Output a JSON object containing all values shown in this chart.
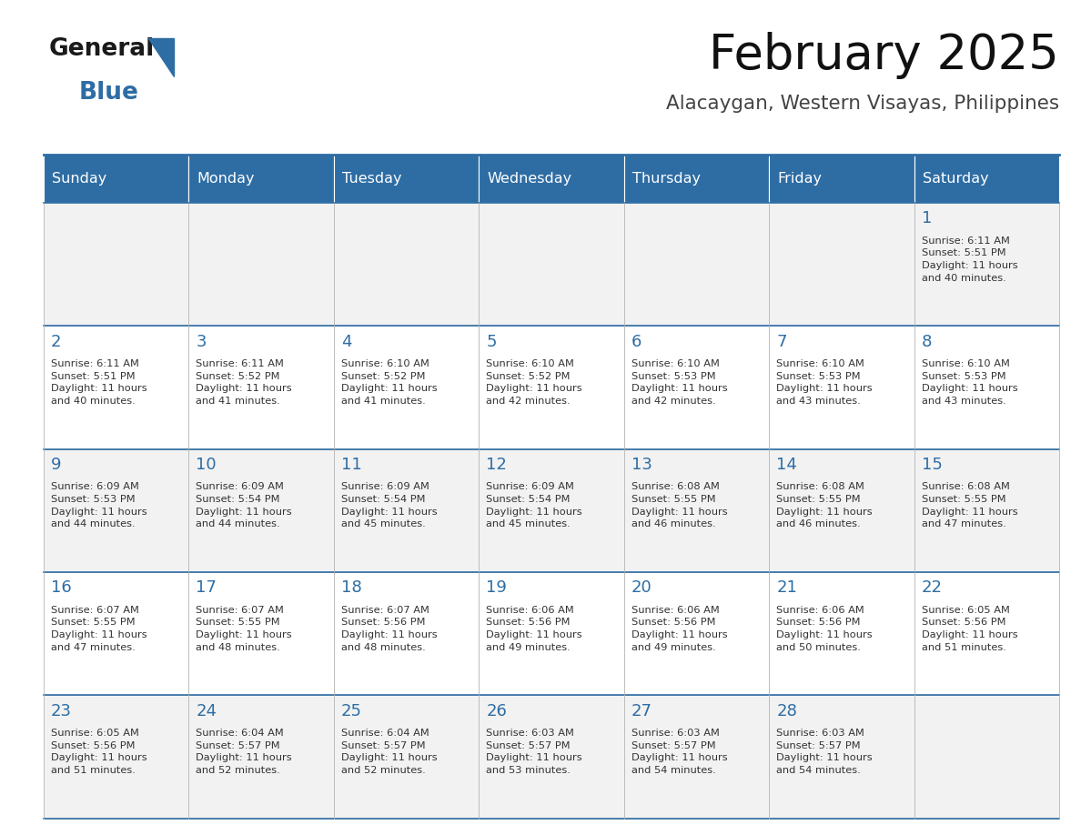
{
  "title": "February 2025",
  "subtitle": "Alacaygan, Western Visayas, Philippines",
  "header_bg_color": "#2E6DA4",
  "header_text_color": "#FFFFFF",
  "cell_bg_color": "#F2F2F2",
  "cell_bg_color_alt": "#FFFFFF",
  "day_number_color": "#2E6DA4",
  "cell_text_color": "#333333",
  "days_of_week": [
    "Sunday",
    "Monday",
    "Tuesday",
    "Wednesday",
    "Thursday",
    "Friday",
    "Saturday"
  ],
  "weeks": [
    [
      {
        "day": "",
        "info": ""
      },
      {
        "day": "",
        "info": ""
      },
      {
        "day": "",
        "info": ""
      },
      {
        "day": "",
        "info": ""
      },
      {
        "day": "",
        "info": ""
      },
      {
        "day": "",
        "info": ""
      },
      {
        "day": "1",
        "info": "Sunrise: 6:11 AM\nSunset: 5:51 PM\nDaylight: 11 hours\nand 40 minutes."
      }
    ],
    [
      {
        "day": "2",
        "info": "Sunrise: 6:11 AM\nSunset: 5:51 PM\nDaylight: 11 hours\nand 40 minutes."
      },
      {
        "day": "3",
        "info": "Sunrise: 6:11 AM\nSunset: 5:52 PM\nDaylight: 11 hours\nand 41 minutes."
      },
      {
        "day": "4",
        "info": "Sunrise: 6:10 AM\nSunset: 5:52 PM\nDaylight: 11 hours\nand 41 minutes."
      },
      {
        "day": "5",
        "info": "Sunrise: 6:10 AM\nSunset: 5:52 PM\nDaylight: 11 hours\nand 42 minutes."
      },
      {
        "day": "6",
        "info": "Sunrise: 6:10 AM\nSunset: 5:53 PM\nDaylight: 11 hours\nand 42 minutes."
      },
      {
        "day": "7",
        "info": "Sunrise: 6:10 AM\nSunset: 5:53 PM\nDaylight: 11 hours\nand 43 minutes."
      },
      {
        "day": "8",
        "info": "Sunrise: 6:10 AM\nSunset: 5:53 PM\nDaylight: 11 hours\nand 43 minutes."
      }
    ],
    [
      {
        "day": "9",
        "info": "Sunrise: 6:09 AM\nSunset: 5:53 PM\nDaylight: 11 hours\nand 44 minutes."
      },
      {
        "day": "10",
        "info": "Sunrise: 6:09 AM\nSunset: 5:54 PM\nDaylight: 11 hours\nand 44 minutes."
      },
      {
        "day": "11",
        "info": "Sunrise: 6:09 AM\nSunset: 5:54 PM\nDaylight: 11 hours\nand 45 minutes."
      },
      {
        "day": "12",
        "info": "Sunrise: 6:09 AM\nSunset: 5:54 PM\nDaylight: 11 hours\nand 45 minutes."
      },
      {
        "day": "13",
        "info": "Sunrise: 6:08 AM\nSunset: 5:55 PM\nDaylight: 11 hours\nand 46 minutes."
      },
      {
        "day": "14",
        "info": "Sunrise: 6:08 AM\nSunset: 5:55 PM\nDaylight: 11 hours\nand 46 minutes."
      },
      {
        "day": "15",
        "info": "Sunrise: 6:08 AM\nSunset: 5:55 PM\nDaylight: 11 hours\nand 47 minutes."
      }
    ],
    [
      {
        "day": "16",
        "info": "Sunrise: 6:07 AM\nSunset: 5:55 PM\nDaylight: 11 hours\nand 47 minutes."
      },
      {
        "day": "17",
        "info": "Sunrise: 6:07 AM\nSunset: 5:55 PM\nDaylight: 11 hours\nand 48 minutes."
      },
      {
        "day": "18",
        "info": "Sunrise: 6:07 AM\nSunset: 5:56 PM\nDaylight: 11 hours\nand 48 minutes."
      },
      {
        "day": "19",
        "info": "Sunrise: 6:06 AM\nSunset: 5:56 PM\nDaylight: 11 hours\nand 49 minutes."
      },
      {
        "day": "20",
        "info": "Sunrise: 6:06 AM\nSunset: 5:56 PM\nDaylight: 11 hours\nand 49 minutes."
      },
      {
        "day": "21",
        "info": "Sunrise: 6:06 AM\nSunset: 5:56 PM\nDaylight: 11 hours\nand 50 minutes."
      },
      {
        "day": "22",
        "info": "Sunrise: 6:05 AM\nSunset: 5:56 PM\nDaylight: 11 hours\nand 51 minutes."
      }
    ],
    [
      {
        "day": "23",
        "info": "Sunrise: 6:05 AM\nSunset: 5:56 PM\nDaylight: 11 hours\nand 51 minutes."
      },
      {
        "day": "24",
        "info": "Sunrise: 6:04 AM\nSunset: 5:57 PM\nDaylight: 11 hours\nand 52 minutes."
      },
      {
        "day": "25",
        "info": "Sunrise: 6:04 AM\nSunset: 5:57 PM\nDaylight: 11 hours\nand 52 minutes."
      },
      {
        "day": "26",
        "info": "Sunrise: 6:03 AM\nSunset: 5:57 PM\nDaylight: 11 hours\nand 53 minutes."
      },
      {
        "day": "27",
        "info": "Sunrise: 6:03 AM\nSunset: 5:57 PM\nDaylight: 11 hours\nand 54 minutes."
      },
      {
        "day": "28",
        "info": "Sunrise: 6:03 AM\nSunset: 5:57 PM\nDaylight: 11 hours\nand 54 minutes."
      },
      {
        "day": "",
        "info": ""
      }
    ]
  ],
  "logo_text_general": "General",
  "logo_text_blue": "Blue",
  "logo_color_general": "#1a1a1a",
  "logo_color_blue": "#2E6DA4",
  "logo_triangle_color": "#2E6DA4"
}
